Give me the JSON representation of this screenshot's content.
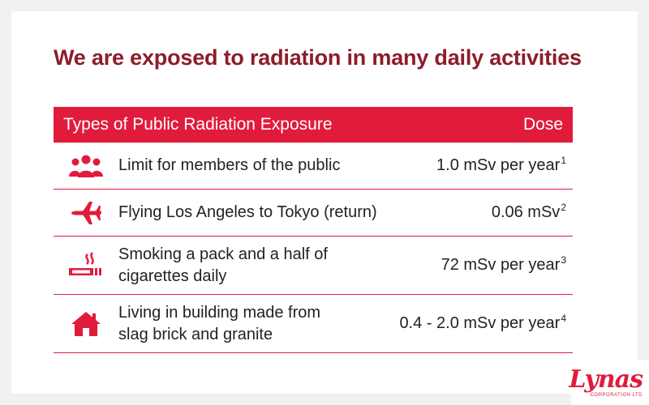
{
  "title": "We are exposed to radiation in many daily activities",
  "table": {
    "header_type": "Types of Public Radiation Exposure",
    "header_dose": "Dose",
    "rows": [
      {
        "icon": "people-icon",
        "label": "Limit for members of the public",
        "dose": "1.0 mSv per year",
        "note": "1"
      },
      {
        "icon": "airplane-icon",
        "label": "Flying Los Angeles to Tokyo (return)",
        "dose": "0.06 mSv",
        "note": "2"
      },
      {
        "icon": "cigarette-icon",
        "label": "Smoking a pack and a half of\ncigarettes daily",
        "dose": "72 mSv per year",
        "note": "3"
      },
      {
        "icon": "house-icon",
        "label": "Living in building made from\nslag brick and granite",
        "dose": "0.4 - 2.0 mSv per year",
        "note": "4"
      }
    ]
  },
  "logo": {
    "word": "Lynas",
    "sub": "CORPORATION LTD"
  },
  "colors": {
    "accent": "#e11b3c",
    "title": "#8c1d2a"
  }
}
